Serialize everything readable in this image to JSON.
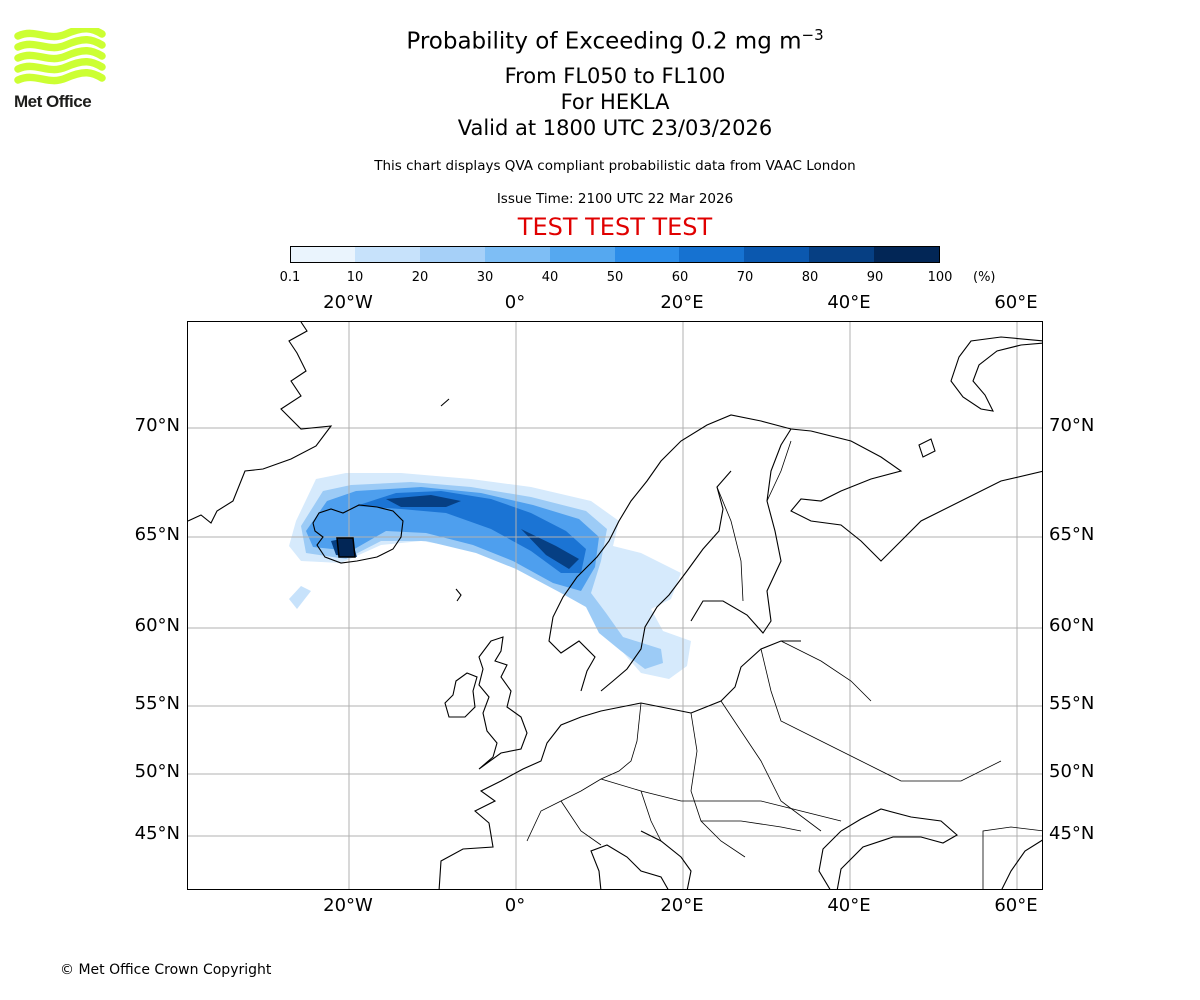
{
  "logo": {
    "text": "Met Office",
    "color": "#ccff33"
  },
  "title": {
    "line1_main": "Probability of Exceeding 0.2 mg m",
    "line1_exp": "−3",
    "line2": "From FL050 to FL100",
    "line3": "For HEKLA",
    "line4": "Valid at 1800 UTC 23/03/2026",
    "description": "This chart displays QVA compliant probabilistic data from VAAC London",
    "issue_time": "Issue Time: 2100 UTC 22 Mar 2026",
    "test_banner": "TEST TEST TEST"
  },
  "colorbar": {
    "ticks": [
      "0.1",
      "10",
      "20",
      "30",
      "40",
      "50",
      "60",
      "70",
      "80",
      "90",
      "100"
    ],
    "unit": "(%)",
    "colors": [
      "#eaf4fd",
      "#c7e2fb",
      "#a6d0f8",
      "#7ebef5",
      "#55a8f0",
      "#2c8de9",
      "#1672d1",
      "#0b58af",
      "#063f83",
      "#022656"
    ]
  },
  "map": {
    "lon_labels": [
      "20°W",
      "0°",
      "20°E",
      "40°E",
      "60°E"
    ],
    "lat_labels": [
      "70°N",
      "65°N",
      "60°N",
      "55°N",
      "50°N",
      "45°N"
    ],
    "volcano": "HEKLA"
  },
  "footer": {
    "copyright": "© Met Office Crown Copyright"
  }
}
